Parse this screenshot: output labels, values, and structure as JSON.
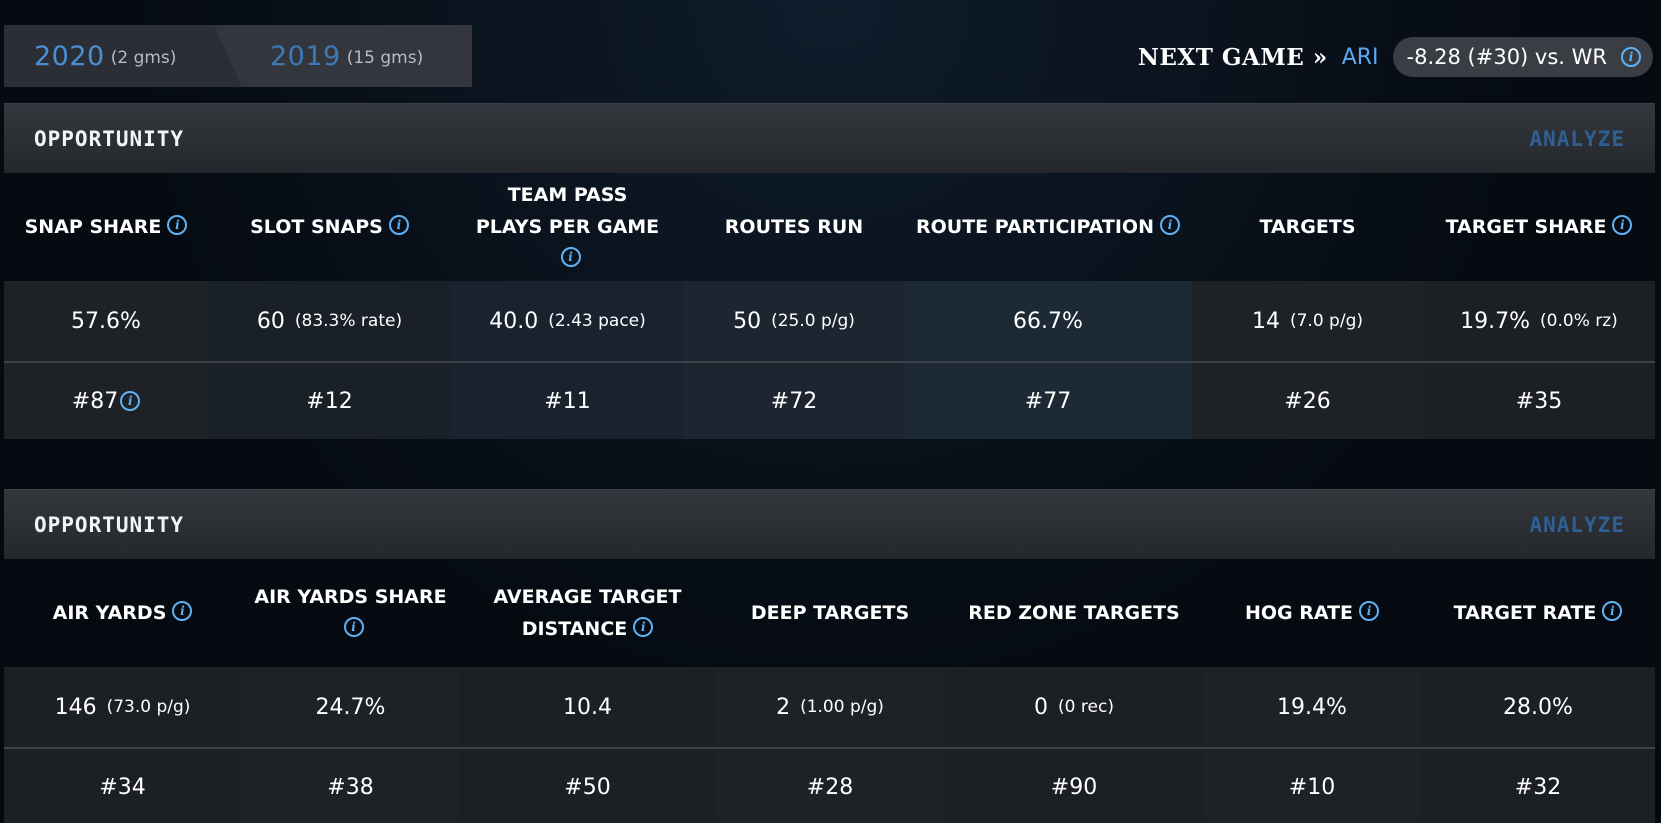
{
  "seasons": [
    {
      "year": "2020",
      "games": "(2 gms)"
    },
    {
      "year": "2019",
      "games": "(15 gms)"
    }
  ],
  "next_game": {
    "label": "NEXT GAME »",
    "opponent": "ARI",
    "matchup": "-8.28 (#30) vs. WR"
  },
  "sections": [
    {
      "title": "OPPORTUNITY",
      "analyze": "ANALYZE",
      "columns": [
        {
          "header": "SNAP SHARE",
          "value": "57.6%",
          "sub": "",
          "rank": "#87"
        },
        {
          "header": "SLOT SNAPS",
          "value": "60",
          "sub": "(83.3% rate)",
          "rank": "#12"
        },
        {
          "header": "TEAM PASS PLAYS PER GAME",
          "value": "40.0",
          "sub": "(2.43 pace)",
          "rank": "#11"
        },
        {
          "header": "ROUTES RUN",
          "value": "50",
          "sub": "(25.0 p/g)",
          "rank": "#72"
        },
        {
          "header": "ROUTE PARTICIPATION",
          "value": "66.7%",
          "sub": "",
          "rank": "#77"
        },
        {
          "header": "TARGETS",
          "value": "14",
          "sub": "(7.0 p/g)",
          "rank": "#26"
        },
        {
          "header": "TARGET SHARE",
          "value": "19.7%",
          "sub": "(0.0% rz)",
          "rank": "#35"
        }
      ]
    },
    {
      "title": "OPPORTUNITY",
      "analyze": "ANALYZE",
      "columns": [
        {
          "header": "AIR YARDS",
          "value": "146",
          "sub": "(73.0 p/g)",
          "rank": "#34"
        },
        {
          "header": "AIR YARDS SHARE",
          "value": "24.7%",
          "sub": "",
          "rank": "#38"
        },
        {
          "header": "AVERAGE TARGET DISTANCE",
          "value": "10.4",
          "sub": "",
          "rank": "#50"
        },
        {
          "header": "DEEP TARGETS",
          "value": "2",
          "sub": "(1.00 p/g)",
          "rank": "#28"
        },
        {
          "header": "RED ZONE TARGETS",
          "value": "0",
          "sub": "(0 rec)",
          "rank": "#90"
        },
        {
          "header": "HOG RATE",
          "value": "19.4%",
          "sub": "",
          "rank": "#10"
        },
        {
          "header": "TARGET RATE",
          "value": "28.0%",
          "sub": "",
          "rank": "#32"
        }
      ]
    }
  ]
}
